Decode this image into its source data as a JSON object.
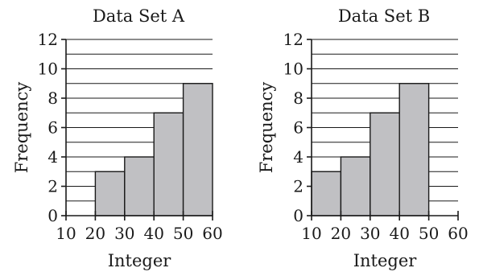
{
  "chart_data": [
    {
      "type": "bar",
      "title": "Data Set A",
      "xlabel": "Integer",
      "ylabel": "Frequency",
      "xticks": [
        10,
        20,
        30,
        40,
        50,
        60
      ],
      "yticks": [
        0,
        2,
        4,
        6,
        8,
        10,
        12
      ],
      "xlim": [
        10,
        60
      ],
      "ylim": [
        0,
        12
      ],
      "bins": [
        {
          "start": 20,
          "end": 30,
          "value": 3
        },
        {
          "start": 30,
          "end": 40,
          "value": 4
        },
        {
          "start": 40,
          "end": 50,
          "value": 7
        },
        {
          "start": 50,
          "end": 60,
          "value": 9
        }
      ],
      "grid": true
    },
    {
      "type": "bar",
      "title": "Data Set B",
      "xlabel": "Integer",
      "ylabel": "Frequency",
      "xticks": [
        10,
        20,
        30,
        40,
        50,
        60
      ],
      "yticks": [
        0,
        2,
        4,
        6,
        8,
        10,
        12
      ],
      "xlim": [
        10,
        60
      ],
      "ylim": [
        0,
        12
      ],
      "bins": [
        {
          "start": 10,
          "end": 20,
          "value": 3
        },
        {
          "start": 20,
          "end": 30,
          "value": 4
        },
        {
          "start": 30,
          "end": 40,
          "value": 7
        },
        {
          "start": 40,
          "end": 50,
          "value": 9
        }
      ],
      "grid": true
    }
  ]
}
